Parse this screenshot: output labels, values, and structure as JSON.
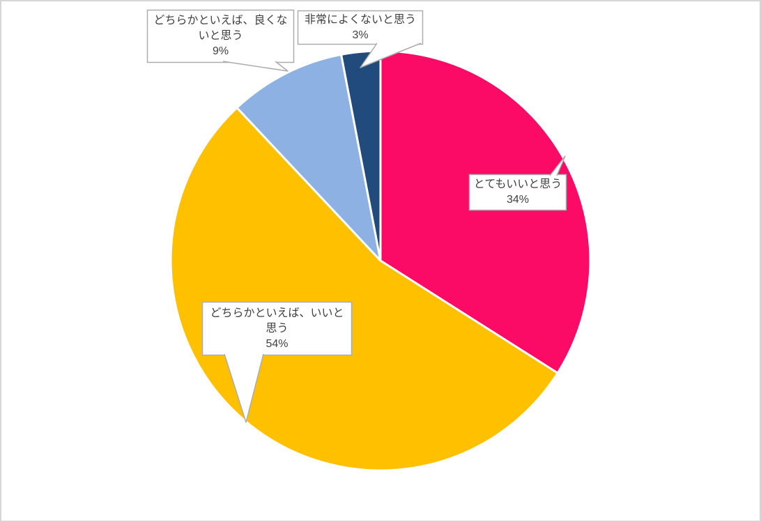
{
  "chart_data": {
    "type": "pie",
    "title": "",
    "categories": [
      "とてもいいと思う",
      "どちらかといえば、いいと思う",
      "どちらかといえば、良くないと思う",
      "非常によくないと思う"
    ],
    "values": [
      34,
      54,
      9,
      3
    ],
    "unit": "%",
    "series_name": "",
    "colors": [
      "#FB0A66",
      "#FFC000",
      "#8EB1E3",
      "#214B7C"
    ],
    "start_angle": "12-oclock",
    "direction": "clockwise",
    "legend": "none",
    "grid": "off",
    "data_labels": "callout boxes with category name and percentage",
    "label_text_color": "#404040",
    "callout_border_color": "#ACACAC",
    "callout_fill_color": "#FFFFFF",
    "slice_separator_color": "#FFFFFF",
    "background_color": "#FFFFFF",
    "frame_border_color": "#D6D6D6",
    "callouts": [
      {
        "name": "very-good",
        "lines": [
          "とてもいいと思う",
          "34%"
        ]
      },
      {
        "name": "rather-good",
        "lines": [
          "どちらかといえば、いいと",
          "思う",
          "54%"
        ]
      },
      {
        "name": "rather-not-good",
        "lines": [
          "どちらかといえば、良くな",
          "いと思う",
          "9%"
        ]
      },
      {
        "name": "very-not-good",
        "lines": [
          "非常によくないと思う",
          "3%"
        ]
      }
    ]
  }
}
